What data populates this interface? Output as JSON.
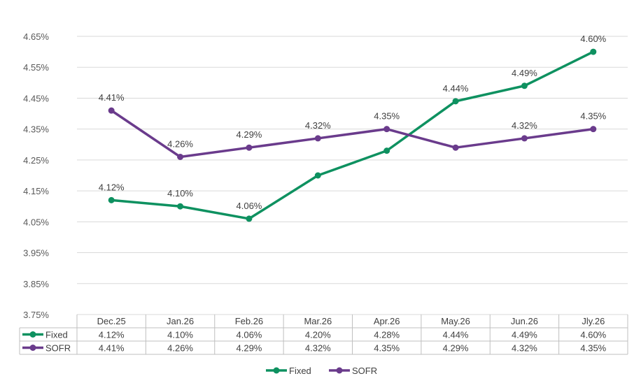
{
  "chart_data": {
    "type": "line",
    "categories": [
      "Dec.25",
      "Jan.26",
      "Feb.26",
      "Mar.26",
      "Apr.26",
      "May.26",
      "Jun.26",
      "Jly.26"
    ],
    "series": [
      {
        "name": "Fixed",
        "values": [
          4.12,
          4.1,
          4.06,
          4.2,
          4.28,
          4.44,
          4.49,
          4.6
        ],
        "table_values": [
          "4.12%",
          "4.10%",
          "4.06%",
          "4.20%",
          "4.28%",
          "4.44%",
          "4.49%",
          "4.60%"
        ],
        "data_labels": [
          "4.12%",
          "4.10%",
          "4.06%",
          "",
          "",
          "4.44%",
          "4.49%",
          "4.60%"
        ],
        "color": "#0e9160"
      },
      {
        "name": "SOFR",
        "values": [
          4.41,
          4.26,
          4.29,
          4.32,
          4.35,
          4.29,
          4.32,
          4.35
        ],
        "table_values": [
          "4.41%",
          "4.26%",
          "4.29%",
          "4.32%",
          "4.35%",
          "4.29%",
          "4.32%",
          "4.35%"
        ],
        "data_labels": [
          "4.41%",
          "4.26%",
          "4.29%",
          "4.32%",
          "4.35%",
          "",
          "4.32%",
          "4.35%"
        ],
        "color": "#6a3b8c"
      }
    ],
    "y_ticks": [
      "4.65%",
      "4.55%",
      "4.45%",
      "4.35%",
      "4.25%",
      "4.15%",
      "4.05%",
      "3.95%",
      "3.85%",
      "3.75%"
    ],
    "ylim": [
      3.75,
      4.65
    ],
    "grid": true,
    "data_table": true,
    "legend_position": "bottom"
  }
}
